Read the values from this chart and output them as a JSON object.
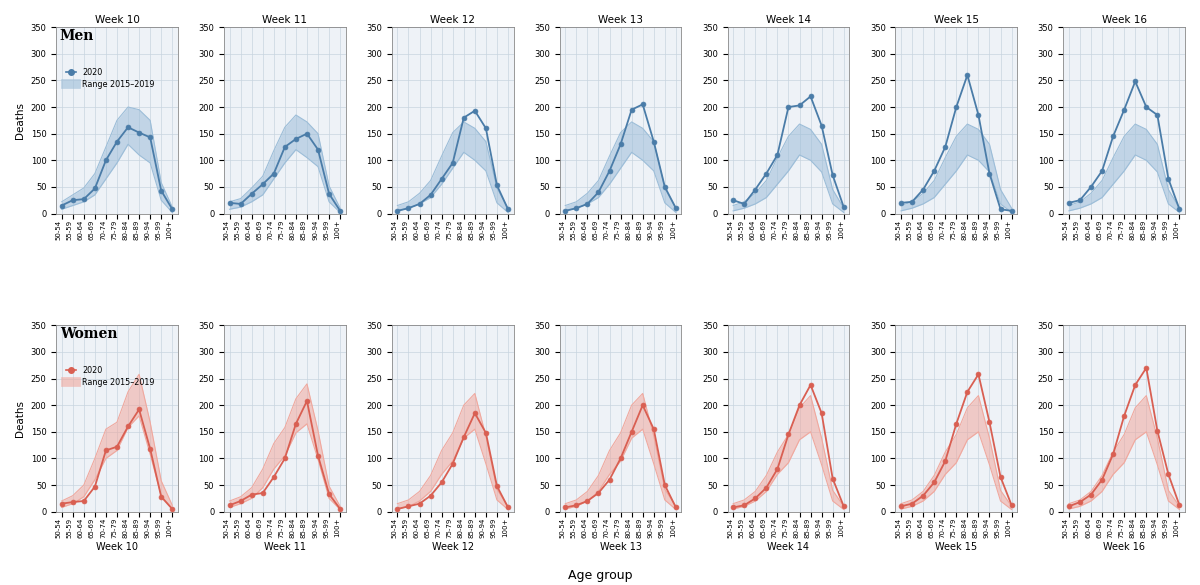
{
  "weeks": [
    "Week 10",
    "Week 11",
    "Week 12",
    "Week 13",
    "Week 14",
    "Week 15",
    "Week 16"
  ],
  "age_groups": [
    "50-54",
    "55-59",
    "60-64",
    "65-69",
    "70-74",
    "75-79",
    "80-84",
    "85-89",
    "90-94",
    "95-99",
    "100+"
  ],
  "men_2020": [
    [
      15,
      25,
      27,
      47,
      100,
      135,
      162,
      152,
      143,
      43,
      8
    ],
    [
      20,
      18,
      37,
      55,
      75,
      125,
      140,
      150,
      120,
      37,
      5
    ],
    [
      5,
      10,
      18,
      35,
      65,
      95,
      180,
      193,
      160,
      53,
      8
    ],
    [
      5,
      10,
      18,
      40,
      80,
      130,
      195,
      205,
      135,
      50,
      10
    ],
    [
      25,
      18,
      45,
      75,
      110,
      200,
      203,
      220,
      165,
      72,
      12
    ],
    [
      20,
      22,
      45,
      80,
      125,
      200,
      260,
      185,
      75,
      8,
      5
    ],
    [
      20,
      25,
      50,
      80,
      145,
      195,
      248,
      200,
      185,
      65,
      8
    ]
  ],
  "men_range_low": [
    [
      8,
      15,
      22,
      35,
      65,
      95,
      130,
      110,
      95,
      25,
      2
    ],
    [
      8,
      12,
      22,
      35,
      65,
      95,
      120,
      105,
      88,
      22,
      2
    ],
    [
      5,
      10,
      18,
      30,
      55,
      85,
      115,
      100,
      80,
      20,
      2
    ],
    [
      5,
      10,
      18,
      30,
      55,
      85,
      115,
      100,
      80,
      20,
      2
    ],
    [
      5,
      10,
      18,
      30,
      55,
      80,
      110,
      100,
      78,
      18,
      2
    ],
    [
      5,
      10,
      18,
      30,
      55,
      80,
      110,
      100,
      78,
      18,
      2
    ],
    [
      5,
      10,
      18,
      30,
      55,
      80,
      110,
      100,
      78,
      18,
      2
    ]
  ],
  "men_range_high": [
    [
      22,
      35,
      48,
      75,
      125,
      175,
      200,
      195,
      175,
      58,
      12
    ],
    [
      22,
      28,
      48,
      70,
      118,
      162,
      185,
      172,
      150,
      52,
      10
    ],
    [
      15,
      22,
      38,
      62,
      108,
      152,
      172,
      160,
      135,
      48,
      10
    ],
    [
      15,
      22,
      38,
      62,
      108,
      152,
      172,
      160,
      135,
      48,
      10
    ],
    [
      15,
      22,
      38,
      62,
      105,
      145,
      168,
      158,
      130,
      45,
      10
    ],
    [
      15,
      22,
      38,
      62,
      105,
      145,
      168,
      158,
      130,
      45,
      10
    ],
    [
      15,
      22,
      38,
      62,
      105,
      145,
      168,
      158,
      130,
      45,
      10
    ]
  ],
  "women_2020": [
    [
      15,
      18,
      20,
      47,
      115,
      122,
      160,
      192,
      118,
      28,
      5
    ],
    [
      12,
      20,
      32,
      35,
      65,
      100,
      165,
      208,
      105,
      33,
      5
    ],
    [
      5,
      10,
      15,
      30,
      55,
      90,
      140,
      185,
      148,
      48,
      8
    ],
    [
      8,
      12,
      20,
      35,
      60,
      100,
      150,
      200,
      155,
      50,
      8
    ],
    [
      8,
      12,
      25,
      45,
      80,
      145,
      200,
      238,
      185,
      62,
      10
    ],
    [
      10,
      15,
      30,
      55,
      95,
      165,
      225,
      258,
      168,
      65,
      12
    ],
    [
      10,
      18,
      32,
      60,
      108,
      180,
      238,
      270,
      152,
      70,
      12
    ]
  ],
  "women_range_low": [
    [
      8,
      15,
      28,
      60,
      100,
      115,
      158,
      180,
      108,
      30,
      5
    ],
    [
      8,
      15,
      25,
      45,
      80,
      105,
      148,
      165,
      98,
      25,
      4
    ],
    [
      5,
      10,
      20,
      38,
      70,
      95,
      138,
      155,
      90,
      22,
      4
    ],
    [
      5,
      10,
      20,
      38,
      70,
      95,
      138,
      155,
      90,
      22,
      4
    ],
    [
      5,
      10,
      20,
      38,
      70,
      92,
      135,
      150,
      88,
      20,
      4
    ],
    [
      5,
      10,
      20,
      38,
      70,
      92,
      135,
      150,
      88,
      20,
      4
    ],
    [
      5,
      10,
      20,
      38,
      70,
      92,
      135,
      150,
      88,
      20,
      4
    ]
  ],
  "women_range_high": [
    [
      20,
      30,
      50,
      100,
      155,
      168,
      225,
      258,
      168,
      58,
      12
    ],
    [
      20,
      28,
      45,
      80,
      128,
      158,
      212,
      240,
      152,
      48,
      10
    ],
    [
      15,
      22,
      38,
      68,
      115,
      148,
      200,
      222,
      142,
      42,
      10
    ],
    [
      15,
      22,
      38,
      68,
      115,
      148,
      200,
      222,
      142,
      42,
      10
    ],
    [
      15,
      22,
      38,
      68,
      112,
      145,
      195,
      218,
      138,
      40,
      10
    ],
    [
      15,
      22,
      38,
      68,
      112,
      145,
      195,
      218,
      138,
      40,
      10
    ],
    [
      15,
      22,
      38,
      68,
      112,
      145,
      195,
      218,
      138,
      40,
      10
    ]
  ],
  "blue_line": "#4a7ca8",
  "blue_fill": "#9cbdd8",
  "red_line": "#d95f52",
  "red_fill": "#f0a89e",
  "bg_color": "#eef2f7",
  "grid_color": "#c8d4e0",
  "ylim": [
    0,
    350
  ],
  "yticks": [
    0,
    50,
    100,
    150,
    200,
    250,
    300,
    350
  ],
  "xlabel": "Age group",
  "ylabel": "Deaths"
}
